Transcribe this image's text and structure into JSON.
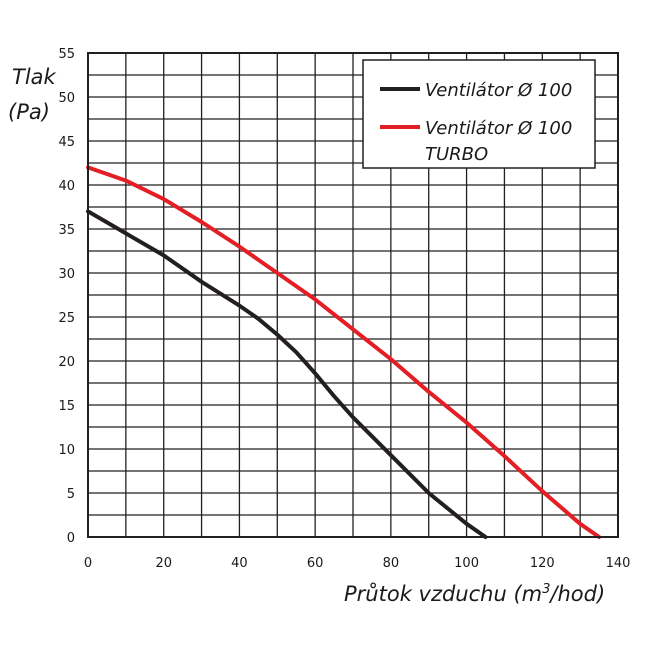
{
  "chart_data": {
    "type": "line",
    "title": "",
    "ylabel": {
      "line1": "Tlak",
      "line2": "(Pa)"
    },
    "xlabel": {
      "prefix": "Průtok vzduchu (m",
      "sup": "3",
      "suffix": "/hod)"
    },
    "xlim": [
      0,
      140
    ],
    "ylim": [
      0,
      55
    ],
    "x_ticks": [
      "0",
      "20",
      "40",
      "60",
      "80",
      "100",
      "120",
      "140"
    ],
    "y_ticks": [
      "0",
      "5",
      "10",
      "15",
      "20",
      "25",
      "30",
      "35",
      "40",
      "45",
      "50",
      "55"
    ],
    "grid": true,
    "legend_position": "top-right",
    "series": [
      {
        "name": "Ventilátor Ø 100",
        "color": "#231f20",
        "points": [
          [
            0,
            37
          ],
          [
            10,
            34.5
          ],
          [
            20,
            32
          ],
          [
            30,
            29
          ],
          [
            40,
            26.3
          ],
          [
            45,
            24.8
          ],
          [
            50,
            23
          ],
          [
            55,
            21
          ],
          [
            60,
            18.6
          ],
          [
            65,
            16
          ],
          [
            70,
            13.6
          ],
          [
            80,
            9.3
          ],
          [
            90,
            5
          ],
          [
            100,
            1.5
          ],
          [
            105,
            0
          ]
        ]
      },
      {
        "name": "Ventilátor Ø 100",
        "name_line2": "TURBO",
        "color": "#e31e24",
        "points": [
          [
            0,
            42
          ],
          [
            10,
            40.5
          ],
          [
            20,
            38.4
          ],
          [
            30,
            35.8
          ],
          [
            40,
            33
          ],
          [
            50,
            30
          ],
          [
            60,
            27
          ],
          [
            70,
            23.6
          ],
          [
            80,
            20.2
          ],
          [
            90,
            16.5
          ],
          [
            100,
            13
          ],
          [
            110,
            9.2
          ],
          [
            120,
            5.2
          ],
          [
            130,
            1.5
          ],
          [
            135,
            0
          ]
        ]
      }
    ]
  }
}
